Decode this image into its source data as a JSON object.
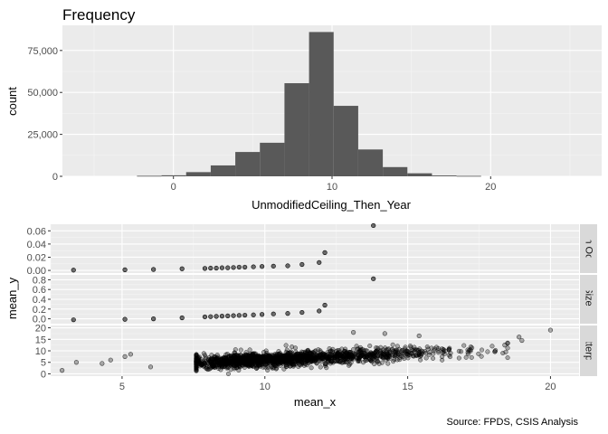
{
  "chart_data": [
    {
      "type": "bar",
      "title": "Frequency",
      "xlabel": "UnmodifiedCeiling_Then_Year",
      "ylabel": "count",
      "xlim": [
        -7,
        27
      ],
      "ylim": [
        0,
        90000
      ],
      "x_ticks": [
        {
          "value": 0,
          "label": "0"
        },
        {
          "value": 10,
          "label": "10"
        },
        {
          "value": 20,
          "label": "20"
        }
      ],
      "y_ticks": [
        {
          "value": 0,
          "label": "0"
        },
        {
          "value": 25000,
          "label": "25,000"
        },
        {
          "value": 50000,
          "label": "50,000"
        },
        {
          "value": 75000,
          "label": "75,000"
        }
      ],
      "bin_width": 1.55,
      "bins": [
        {
          "start": -2.3,
          "count": 300
        },
        {
          "start": -0.75,
          "count": 600
        },
        {
          "start": 0.8,
          "count": 2500
        },
        {
          "start": 2.35,
          "count": 6500
        },
        {
          "start": 3.9,
          "count": 14500
        },
        {
          "start": 5.45,
          "count": 20000
        },
        {
          "start": 7.0,
          "count": 55500
        },
        {
          "start": 8.55,
          "count": 86000
        },
        {
          "start": 10.1,
          "count": 42000
        },
        {
          "start": 11.65,
          "count": 16000
        },
        {
          "start": 13.2,
          "count": 5500
        },
        {
          "start": 14.75,
          "count": 1800
        },
        {
          "start": 16.3,
          "count": 500
        },
        {
          "start": 17.85,
          "count": 250
        }
      ],
      "grid": true
    },
    {
      "type": "scatter",
      "facet": true,
      "xlabel": "mean_x",
      "ylabel": "mean_y",
      "xlim": [
        2.5,
        21
      ],
      "x_ticks": [
        {
          "value": 5,
          "label": "5"
        },
        {
          "value": 10,
          "label": "10"
        },
        {
          "value": 15,
          "label": "15"
        },
        {
          "value": 20,
          "label": "20"
        }
      ],
      "panels": [
        {
          "strip": "ach Occu",
          "ylim": [
            -0.004,
            0.07
          ],
          "y_ticks": [
            {
              "value": 0.0,
              "label": "0.00"
            },
            {
              "value": 0.02,
              "label": "0.02"
            },
            {
              "value": 0.04,
              "label": "0.04"
            },
            {
              "value": 0.06,
              "label": "0.06"
            }
          ],
          "points": [
            [
              3.3,
              0.0005
            ],
            [
              5.1,
              0.001
            ],
            [
              6.1,
              0.0015
            ],
            [
              7.1,
              0.0025
            ],
            [
              7.9,
              0.003
            ],
            [
              8.1,
              0.0035
            ],
            [
              8.3,
              0.0035
            ],
            [
              8.5,
              0.004
            ],
            [
              8.7,
              0.004
            ],
            [
              8.9,
              0.0045
            ],
            [
              9.1,
              0.005
            ],
            [
              9.3,
              0.005
            ],
            [
              9.6,
              0.0055
            ],
            [
              9.9,
              0.006
            ],
            [
              10.3,
              0.0065
            ],
            [
              10.8,
              0.007
            ],
            [
              11.3,
              0.009
            ],
            [
              11.9,
              0.012
            ],
            [
              12.1,
              0.027
            ],
            [
              13.8,
              0.068
            ]
          ]
        },
        {
          "strip": "e Size (lo",
          "ylim": [
            -0.1,
            0.9
          ],
          "y_ticks": [
            {
              "value": 0.0,
              "label": "0.0"
            },
            {
              "value": 0.2,
              "label": "0.2"
            },
            {
              "value": 0.4,
              "label": "0.4"
            },
            {
              "value": 0.6,
              "label": "0.6"
            },
            {
              "value": 0.8,
              "label": "0.8"
            }
          ],
          "points": [
            [
              3.3,
              -0.02
            ],
            [
              5.1,
              -0.01
            ],
            [
              6.1,
              0.0
            ],
            [
              7.1,
              0.02
            ],
            [
              7.9,
              0.04
            ],
            [
              8.1,
              0.045
            ],
            [
              8.3,
              0.05
            ],
            [
              8.5,
              0.055
            ],
            [
              8.7,
              0.06
            ],
            [
              8.9,
              0.065
            ],
            [
              9.1,
              0.07
            ],
            [
              9.3,
              0.075
            ],
            [
              9.6,
              0.08
            ],
            [
              9.9,
              0.09
            ],
            [
              10.3,
              0.1
            ],
            [
              10.8,
              0.11
            ],
            [
              11.3,
              0.13
            ],
            [
              11.9,
              0.16
            ],
            [
              12.1,
              0.28
            ],
            [
              13.8,
              0.82
            ]
          ]
        },
        {
          "strip": "catterplot",
          "ylim": [
            -1,
            21
          ],
          "y_ticks": [
            {
              "value": 0,
              "label": "0"
            },
            {
              "value": 5,
              "label": "5"
            },
            {
              "value": 10,
              "label": "10"
            },
            {
              "value": 15,
              "label": "15"
            },
            {
              "value": 20,
              "label": "20"
            }
          ],
          "cloud": {
            "x_mean": 9.8,
            "x_spread": 2.4,
            "slope": 0.55,
            "intercept": 0.6,
            "y_noise": 2.2,
            "n": 1600
          },
          "points": [
            [
              2.9,
              1.5
            ],
            [
              3.4,
              5.0
            ],
            [
              4.3,
              4.5
            ],
            [
              4.6,
              6.0
            ],
            [
              5.1,
              7.5
            ],
            [
              5.3,
              8.5
            ],
            [
              6.0,
              3.0
            ],
            [
              16.5,
              9.0
            ],
            [
              17.2,
              10.5
            ],
            [
              18.4,
              12.5
            ],
            [
              19.0,
              14.5
            ],
            [
              20.0,
              19.0
            ],
            [
              18.9,
              16.0
            ],
            [
              14.2,
              17.5
            ],
            [
              13.1,
              18.0
            ],
            [
              15.4,
              16.5
            ]
          ]
        }
      ],
      "caption": "Source: FPDS, CSIS Analysis",
      "grid": true
    }
  ]
}
